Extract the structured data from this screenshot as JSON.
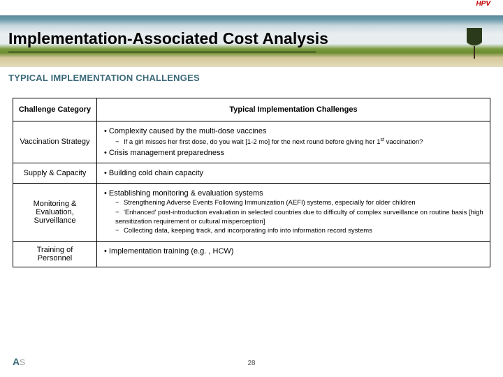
{
  "header": {
    "tag": "HPV",
    "title": "Implementation-Associated Cost Analysis",
    "subtitle": "TYPICAL IMPLEMENTATION CHALLENGES",
    "colors": {
      "tag_color": "#c00000",
      "subtitle_color": "#3b6a7a",
      "title_color": "#000000"
    }
  },
  "table": {
    "columns": [
      "Challenge Category",
      "Typical Implementation Challenges"
    ],
    "rows": [
      {
        "category": "Vaccination Strategy",
        "bullets": [
          {
            "text": "Complexity caused by the multi-dose vaccines",
            "subs": [
              "If a girl misses her first dose, do you wait [1-2 mo] for the next round before giving her 1st vaccination?"
            ]
          },
          {
            "text": "Crisis management preparedness",
            "subs": []
          }
        ]
      },
      {
        "category": "Supply & Capacity",
        "bullets": [
          {
            "text": "Building cold chain capacity",
            "subs": []
          }
        ]
      },
      {
        "category": "Monitoring & Evaluation, Surveillance",
        "bullets": [
          {
            "text": "Establishing monitoring & evaluation systems",
            "subs": [
              "Strengthening Adverse Events Following Immunization (AEFI) systems, especially for older children",
              "'Enhanced' post-introduction evaluation in selected countries due to difficulty of complex surveillance on routine basis [high sensitization requirement or cultural misperception]",
              "Collecting data, keeping track, and incorporating info into information record systems"
            ]
          }
        ]
      },
      {
        "category": "Training of Personnel",
        "bullets": [
          {
            "text": "Implementation training (e.g. , HCW)",
            "subs": []
          }
        ]
      }
    ]
  },
  "footer": {
    "page_number": "28",
    "logo_main": "A",
    "logo_sub": "S"
  }
}
